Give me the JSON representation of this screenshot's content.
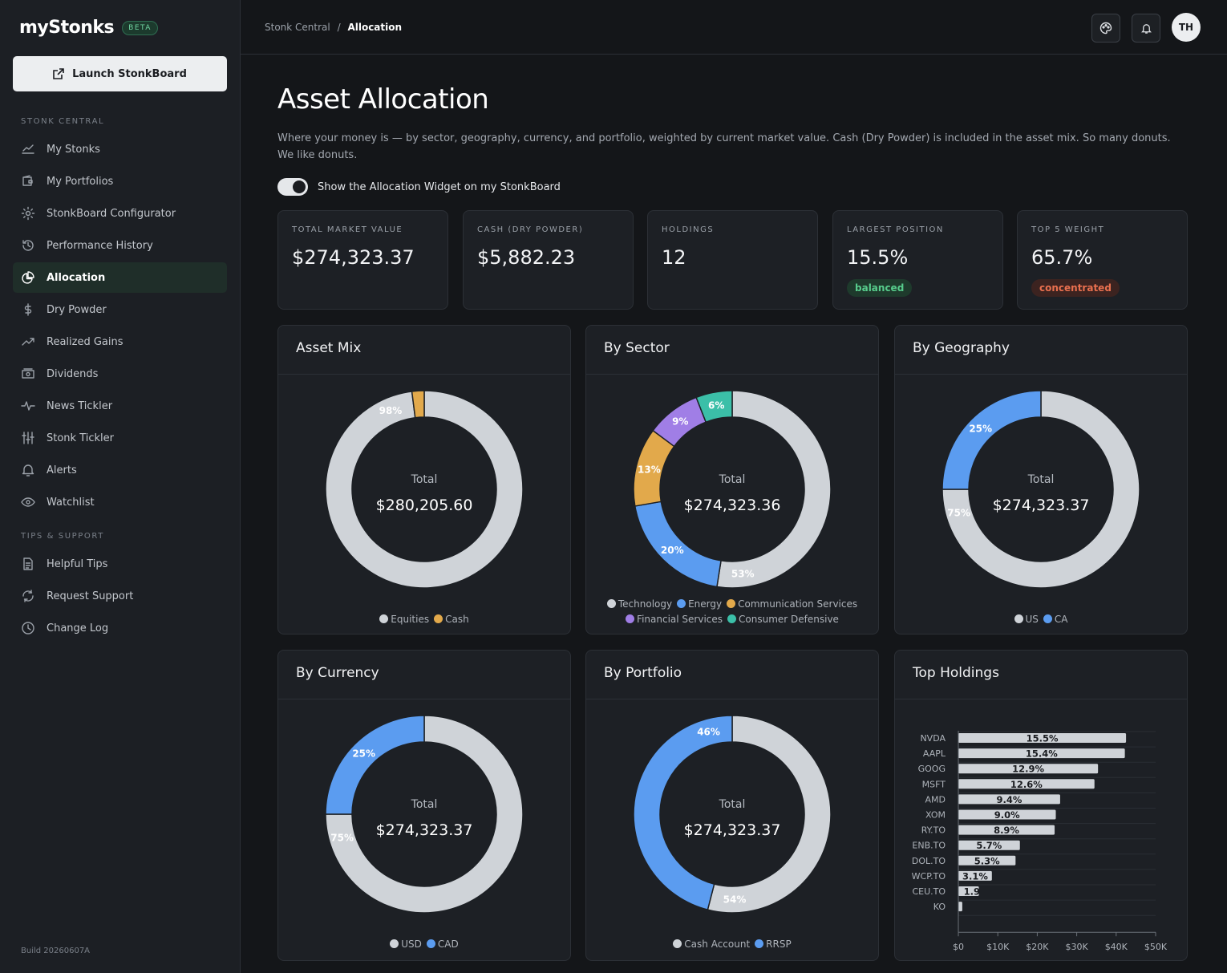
{
  "brand": {
    "name": "myStonks",
    "badge": "BETA",
    "launch_label": "Launch StonkBoard"
  },
  "sidebar": {
    "section1": "STONK CENTRAL",
    "items": [
      {
        "label": "My Stonks",
        "icon": "chart-line-icon"
      },
      {
        "label": "My Portfolios",
        "icon": "wallet-icon"
      },
      {
        "label": "StonkBoard Configurator",
        "icon": "gear-icon"
      },
      {
        "label": "Performance History",
        "icon": "history-icon"
      },
      {
        "label": "Allocation",
        "icon": "pie-chart-icon"
      },
      {
        "label": "Dry Powder",
        "icon": "dollar-icon"
      },
      {
        "label": "Realized Gains",
        "icon": "trend-up-icon"
      },
      {
        "label": "Dividends",
        "icon": "cash-icon"
      },
      {
        "label": "News Tickler",
        "icon": "pulse-icon"
      },
      {
        "label": "Stonk Tickler",
        "icon": "sliders-icon"
      },
      {
        "label": "Alerts",
        "icon": "bell-icon"
      },
      {
        "label": "Watchlist",
        "icon": "eye-icon"
      }
    ],
    "section2": "TIPS & SUPPORT",
    "support": [
      {
        "label": "Helpful Tips",
        "icon": "document-icon"
      },
      {
        "label": "Request Support",
        "icon": "refresh-icon"
      },
      {
        "label": "Change Log",
        "icon": "clock-icon"
      }
    ],
    "build": "Build 20260607A"
  },
  "breadcrumb": {
    "parent": "Stonk Central",
    "sep": "/",
    "current": "Allocation"
  },
  "user": {
    "initials": "TH"
  },
  "page": {
    "title": "Asset Allocation",
    "description": "Where your money is — by sector, geography, currency, and portfolio, weighted by current market value. Cash (Dry Powder) is included in the asset mix. So many donuts. We like donuts.",
    "toggle_label": "Show the Allocation Widget on my StonkBoard"
  },
  "stats": [
    {
      "label": "TOTAL MARKET VALUE",
      "value": "$274,323.37"
    },
    {
      "label": "CASH (DRY POWDER)",
      "value": "$5,882.23"
    },
    {
      "label": "HOLDINGS",
      "value": "12"
    },
    {
      "label": "LARGEST POSITION",
      "value": "15.5%",
      "badge": "balanced"
    },
    {
      "label": "TOP 5 WEIGHT",
      "value": "65.7%",
      "badge": "concentrated"
    }
  ],
  "colors": {
    "light": "#cfd3d8",
    "blue": "#5b9cf0",
    "orange": "#e2a94b",
    "purple": "#a07ee6",
    "teal": "#3bbfa8",
    "good": "#57cc8c",
    "bad": "#e9704f"
  },
  "chart_data": [
    {
      "type": "pie",
      "title": "Asset Mix",
      "center_label": "Total",
      "center_value": "$280,205.60",
      "slices": [
        {
          "name": "Equities",
          "value": 98,
          "label": "98%",
          "color": "#cfd3d8"
        },
        {
          "name": "Cash",
          "value": 2,
          "label": "",
          "color": "#e2a94b"
        }
      ]
    },
    {
      "type": "pie",
      "title": "By Sector",
      "center_label": "Total",
      "center_value": "$274,323.36",
      "slices": [
        {
          "name": "Technology",
          "value": 53,
          "label": "53%",
          "color": "#cfd3d8"
        },
        {
          "name": "Energy",
          "value": 20,
          "label": "20%",
          "color": "#5b9cf0"
        },
        {
          "name": "Communication Services",
          "value": 13,
          "label": "13%",
          "color": "#e2a94b"
        },
        {
          "name": "Financial Services",
          "value": 9,
          "label": "9%",
          "color": "#a07ee6"
        },
        {
          "name": "Consumer Defensive",
          "value": 6,
          "label": "6%",
          "color": "#3bbfa8"
        }
      ]
    },
    {
      "type": "pie",
      "title": "By Geography",
      "center_label": "Total",
      "center_value": "$274,323.37",
      "slices": [
        {
          "name": "US",
          "value": 75,
          "label": "75%",
          "color": "#cfd3d8"
        },
        {
          "name": "CA",
          "value": 25,
          "label": "25%",
          "color": "#5b9cf0"
        }
      ]
    },
    {
      "type": "pie",
      "title": "By Currency",
      "center_label": "Total",
      "center_value": "$274,323.37",
      "slices": [
        {
          "name": "USD",
          "value": 75,
          "label": "75%",
          "color": "#cfd3d8"
        },
        {
          "name": "CAD",
          "value": 25,
          "label": "25%",
          "color": "#5b9cf0"
        }
      ]
    },
    {
      "type": "pie",
      "title": "By Portfolio",
      "center_label": "Total",
      "center_value": "$274,323.37",
      "slices": [
        {
          "name": "Cash Account",
          "value": 54,
          "label": "54%",
          "color": "#cfd3d8"
        },
        {
          "name": "RRSP",
          "value": 46,
          "label": "46%",
          "color": "#5b9cf0"
        }
      ]
    },
    {
      "type": "bar",
      "orientation": "horizontal",
      "title": "Top Holdings",
      "categories": [
        "NVDA",
        "AAPL",
        "GOOG",
        "MSFT",
        "AMD",
        "XOM",
        "RY.TO",
        "ENB.TO",
        "DOL.TO",
        "WCP.TO",
        "CEU.TO",
        "KO"
      ],
      "values": [
        42500,
        42200,
        35400,
        34500,
        25800,
        24700,
        24400,
        15600,
        14500,
        8500,
        5200,
        1000
      ],
      "labels": [
        "15.5%",
        "15.4%",
        "12.9%",
        "12.6%",
        "9.4%",
        "9.0%",
        "8.9%",
        "5.7%",
        "5.3%",
        "3.1%",
        "1.9",
        ""
      ],
      "xlim": [
        0,
        50000
      ],
      "xticks": [
        "$0",
        "$10K",
        "$20K",
        "$30K",
        "$40K",
        "$50K"
      ],
      "bar_color": "#cfd3d8"
    }
  ]
}
